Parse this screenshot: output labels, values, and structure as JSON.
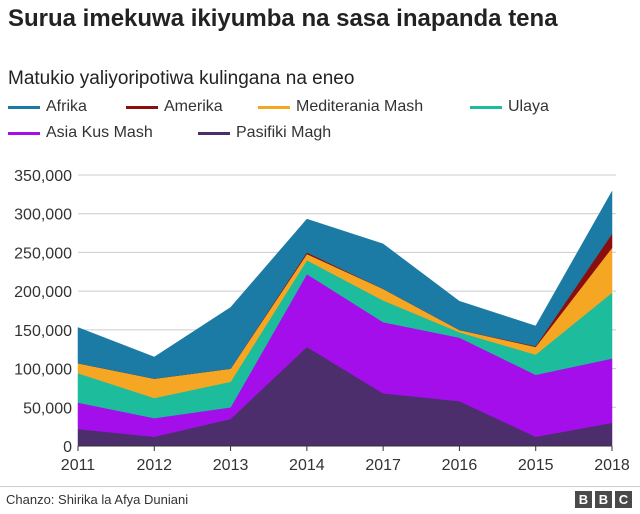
{
  "title": "Surua imekuwa ikiyumba na sasa inapanda tena",
  "subtitle": "Matukio yaliyoripotiwa kulingana na eneo",
  "source": "Chanzo: Shirika la Afya Duniani",
  "logo": [
    "B",
    "B",
    "C"
  ],
  "chart_data": {
    "type": "area",
    "stacked": true,
    "categories": [
      "2011",
      "2012",
      "2013",
      "2014",
      "2017",
      "2016",
      "2015",
      "2018"
    ],
    "ylim": [
      0,
      350000
    ],
    "yticks": [
      0,
      50000,
      100000,
      150000,
      200000,
      250000,
      300000,
      350000
    ],
    "ytick_labels": [
      "0",
      "50,000",
      "100,000",
      "150,000",
      "200,000",
      "250,000",
      "300,000",
      "350,000"
    ],
    "grid": true,
    "legend_position": "top",
    "series": [
      {
        "name": "Pasifiki Magh",
        "color": "#4b2e6b",
        "values": [
          22000,
          12000,
          35000,
          128000,
          68000,
          58000,
          12000,
          30000
        ]
      },
      {
        "name": "Asia Kus Mash",
        "color": "#a30eea",
        "values": [
          34000,
          24000,
          15000,
          94000,
          92000,
          82000,
          80000,
          83000
        ]
      },
      {
        "name": "Ulaya",
        "color": "#1dbc9c",
        "values": [
          38000,
          26000,
          33000,
          18000,
          28000,
          7000,
          26000,
          85000
        ]
      },
      {
        "name": "Mediterania Mash",
        "color": "#f5a623",
        "values": [
          13000,
          25000,
          17000,
          8000,
          15000,
          3000,
          10000,
          58000
        ]
      },
      {
        "name": "Amerika",
        "color": "#8b0d0d",
        "values": [
          0,
          0,
          0,
          2000,
          0,
          0,
          1000,
          18000
        ]
      },
      {
        "name": "Afrika",
        "color": "#1b7ba5",
        "values": [
          46000,
          28000,
          79000,
          43000,
          58000,
          37000,
          26000,
          55000
        ]
      }
    ]
  },
  "legend": [
    {
      "name": "Afrika",
      "color": "#1b7ba5"
    },
    {
      "name": "Amerika",
      "color": "#8b0d0d"
    },
    {
      "name": "Mediterania Mash",
      "color": "#f5a623"
    },
    {
      "name": "Ulaya",
      "color": "#1dbc9c"
    },
    {
      "name": "Asia Kus Mash",
      "color": "#a30eea"
    },
    {
      "name": "Pasifiki Magh",
      "color": "#4b2e6b"
    }
  ]
}
